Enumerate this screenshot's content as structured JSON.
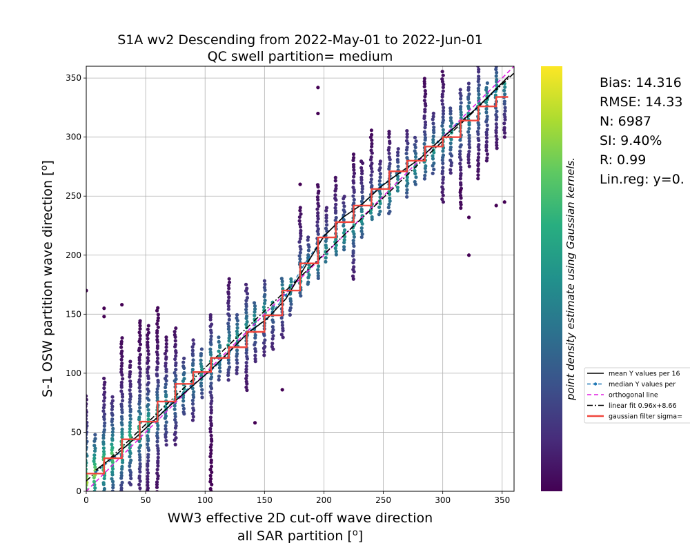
{
  "chart_data": {
    "type": "scatter",
    "title_line1": "S1A wv2 Descending from 2022-May-01 to 2022-Jun-01",
    "title_line2": "QC swell partition= medium",
    "xlabel_line1": "WW3 effective 2D cut-off wave direction",
    "xlabel_line2": "all SAR partition [",
    "ylabel": "S-1 OSW partition wave direction [",
    "unit_symbol": "o",
    "unit_close": "]",
    "xlim": [
      0,
      360
    ],
    "ylim": [
      0,
      360
    ],
    "xticks": [
      0,
      50,
      100,
      150,
      200,
      250,
      300,
      350
    ],
    "yticks": [
      0,
      50,
      100,
      150,
      200,
      250,
      300,
      350
    ],
    "grid": true,
    "colorbar": {
      "label": "point density estimate using Gaussian kernels.",
      "colormap": "viridis",
      "colors": [
        "#440154",
        "#472d7b",
        "#3b528b",
        "#2c728e",
        "#21918c",
        "#28ae80",
        "#5ec962",
        "#addc30",
        "#fde725"
      ]
    },
    "stats": {
      "bias": "Bias: 14.316",
      "rmse": "RMSE: 14.33",
      "n": "N: 6987",
      "si": "SI: 9.40%",
      "r": "R: 0.99",
      "linreg": "Lin.reg: y=0."
    },
    "legend": {
      "placement": "right-outside",
      "items": [
        {
          "label": "mean Y values per 16",
          "color": "#000000",
          "style": "solid"
        },
        {
          "label": "median Y values per",
          "color": "#1f77b4",
          "style": "dashed-marker"
        },
        {
          "label": "orthogonal line",
          "color": "#e01ce0",
          "style": "dashed"
        },
        {
          "label": "linear fit 0.96x+8.66",
          "color": "#000000",
          "style": "dashdot"
        },
        {
          "label": "gaussian filter sigma=",
          "color": "#f0463c",
          "style": "solid-thick"
        }
      ]
    },
    "series": [
      {
        "name": "mean Y values per 16",
        "x": [
          8,
          24,
          40,
          56,
          72,
          88,
          104,
          120,
          136,
          152,
          168,
          184,
          200,
          216,
          232,
          248,
          264,
          280,
          296,
          312,
          328,
          344,
          356
        ],
        "y": [
          18,
          30,
          44,
          59,
          74,
          88,
          102,
          118,
          134,
          146,
          163,
          190,
          216,
          232,
          243,
          258,
          270,
          281,
          296,
          310,
          324,
          340,
          352
        ]
      },
      {
        "name": "median Y values per",
        "x": [
          8,
          24,
          40,
          56,
          72,
          88,
          104,
          120,
          136,
          152,
          168,
          184,
          200,
          216,
          232,
          248,
          264,
          280,
          296,
          312,
          328,
          344
        ],
        "y": [
          16,
          29,
          44,
          59,
          75,
          89,
          101,
          117,
          135,
          146,
          166,
          193,
          216,
          232,
          243,
          259,
          270,
          281,
          296,
          311,
          324,
          339
        ]
      },
      {
        "name": "orthogonal line",
        "x": [
          0,
          360
        ],
        "y": [
          0,
          360
        ]
      },
      {
        "name": "linear fit 0.96x+8.66",
        "x": [
          0,
          360
        ],
        "y": [
          8.66,
          354.26
        ]
      },
      {
        "name": "gaussian filter sigma=",
        "x": [
          0,
          15,
          15,
          30,
          30,
          45,
          45,
          60,
          60,
          75,
          75,
          90,
          90,
          105,
          105,
          120,
          120,
          135,
          135,
          150,
          150,
          165,
          165,
          180,
          180,
          195,
          195,
          210,
          210,
          225,
          225,
          240,
          240,
          255,
          255,
          270,
          270,
          285,
          285,
          300,
          300,
          315,
          315,
          330,
          330,
          345,
          345,
          355
        ],
        "y": [
          15,
          15,
          28,
          28,
          44,
          44,
          59,
          59,
          76,
          76,
          91,
          91,
          101,
          101,
          113,
          113,
          122,
          122,
          135,
          135,
          149,
          149,
          170,
          170,
          193,
          193,
          215,
          215,
          228,
          228,
          242,
          242,
          256,
          256,
          271,
          271,
          280,
          280,
          292,
          292,
          300,
          300,
          314,
          314,
          326,
          326,
          334,
          334
        ]
      }
    ],
    "scatter_columns": [
      {
        "x": 0,
        "y_min": 0,
        "y_max": 80,
        "outliers": [
          170
        ]
      },
      {
        "x": 7,
        "y_min": 0,
        "y_max": 48,
        "outliers": []
      },
      {
        "x": 15,
        "y_min": 0,
        "y_max": 95,
        "outliers": [
          148,
          155
        ]
      },
      {
        "x": 22,
        "y_min": 0,
        "y_max": 80,
        "outliers": []
      },
      {
        "x": 30,
        "y_min": 0,
        "y_max": 130,
        "outliers": [
          158
        ]
      },
      {
        "x": 37,
        "y_min": 5,
        "y_max": 110,
        "outliers": []
      },
      {
        "x": 45,
        "y_min": 0,
        "y_max": 145,
        "outliers": []
      },
      {
        "x": 52,
        "y_min": 0,
        "y_max": 140,
        "outliers": []
      },
      {
        "x": 60,
        "y_min": 0,
        "y_max": 155,
        "outliers": []
      },
      {
        "x": 67,
        "y_min": 40,
        "y_max": 130,
        "outliers": []
      },
      {
        "x": 75,
        "y_min": 40,
        "y_max": 138,
        "outliers": []
      },
      {
        "x": 82,
        "y_min": 65,
        "y_max": 112,
        "outliers": []
      },
      {
        "x": 90,
        "y_min": 60,
        "y_max": 128,
        "outliers": []
      },
      {
        "x": 97,
        "y_min": 80,
        "y_max": 120,
        "outliers": []
      },
      {
        "x": 105,
        "y_min": 0,
        "y_max": 150,
        "outliers": []
      },
      {
        "x": 112,
        "y_min": 95,
        "y_max": 130,
        "outliers": []
      },
      {
        "x": 120,
        "y_min": 95,
        "y_max": 180,
        "outliers": []
      },
      {
        "x": 127,
        "y_min": 100,
        "y_max": 150,
        "outliers": []
      },
      {
        "x": 135,
        "y_min": 85,
        "y_max": 175,
        "outliers": []
      },
      {
        "x": 142,
        "y_min": 110,
        "y_max": 160,
        "outliers": [
          58
        ]
      },
      {
        "x": 150,
        "y_min": 115,
        "y_max": 178,
        "outliers": []
      },
      {
        "x": 157,
        "y_min": 120,
        "y_max": 160,
        "outliers": []
      },
      {
        "x": 165,
        "y_min": 130,
        "y_max": 180,
        "outliers": [
          86
        ]
      },
      {
        "x": 172,
        "y_min": 150,
        "y_max": 180,
        "outliers": []
      },
      {
        "x": 180,
        "y_min": 165,
        "y_max": 240,
        "outliers": [
          260
        ]
      },
      {
        "x": 187,
        "y_min": 175,
        "y_max": 215,
        "outliers": []
      },
      {
        "x": 195,
        "y_min": 180,
        "y_max": 260,
        "outliers": [
          320,
          342
        ]
      },
      {
        "x": 202,
        "y_min": 195,
        "y_max": 240,
        "outliers": []
      },
      {
        "x": 210,
        "y_min": 200,
        "y_max": 265,
        "outliers": []
      },
      {
        "x": 217,
        "y_min": 205,
        "y_max": 250,
        "outliers": []
      },
      {
        "x": 225,
        "y_min": 180,
        "y_max": 285,
        "outliers": []
      },
      {
        "x": 232,
        "y_min": 215,
        "y_max": 280,
        "outliers": []
      },
      {
        "x": 240,
        "y_min": 230,
        "y_max": 305,
        "outliers": []
      },
      {
        "x": 247,
        "y_min": 235,
        "y_max": 280,
        "outliers": []
      },
      {
        "x": 255,
        "y_min": 235,
        "y_max": 305,
        "outliers": []
      },
      {
        "x": 262,
        "y_min": 255,
        "y_max": 290,
        "outliers": []
      },
      {
        "x": 270,
        "y_min": 250,
        "y_max": 305,
        "outliers": []
      },
      {
        "x": 277,
        "y_min": 260,
        "y_max": 300,
        "outliers": []
      },
      {
        "x": 285,
        "y_min": 265,
        "y_max": 350,
        "outliers": []
      },
      {
        "x": 292,
        "y_min": 270,
        "y_max": 320,
        "outliers": []
      },
      {
        "x": 300,
        "y_min": 245,
        "y_max": 355,
        "outliers": []
      },
      {
        "x": 307,
        "y_min": 270,
        "y_max": 325,
        "outliers": []
      },
      {
        "x": 315,
        "y_min": 240,
        "y_max": 340,
        "outliers": [
          255
        ]
      },
      {
        "x": 322,
        "y_min": 275,
        "y_max": 345,
        "outliers": [
          232,
          200
        ]
      },
      {
        "x": 330,
        "y_min": 265,
        "y_max": 360,
        "outliers": []
      },
      {
        "x": 337,
        "y_min": 280,
        "y_max": 345,
        "outliers": []
      },
      {
        "x": 345,
        "y_min": 290,
        "y_max": 360,
        "outliers": [
          242
        ]
      },
      {
        "x": 352,
        "y_min": 300,
        "y_max": 345,
        "outliers": [
          245
        ]
      }
    ]
  }
}
